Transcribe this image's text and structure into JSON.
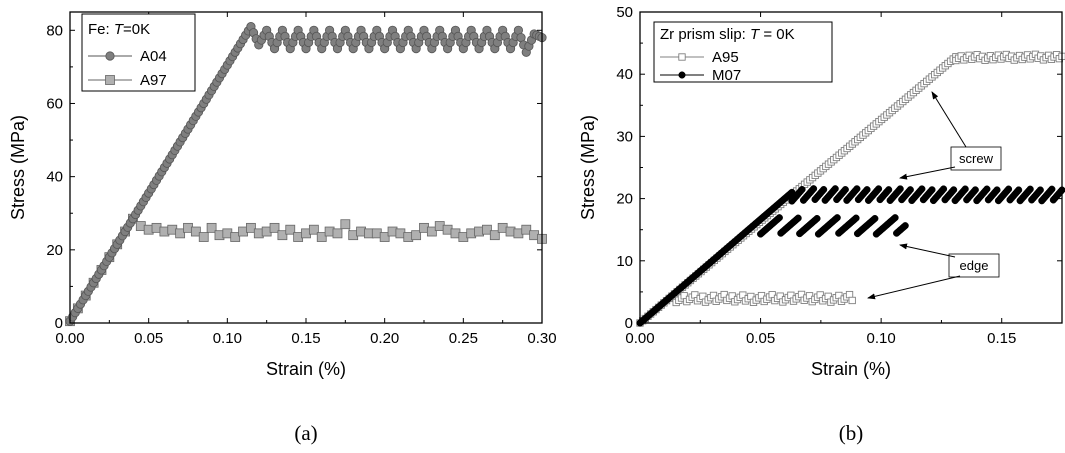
{
  "chart_data": [
    {
      "type": "scatter",
      "panel_label": "(a)",
      "xlabel": "Strain (%)",
      "ylabel": "Stress (MPa)",
      "xlim": [
        0,
        0.3
      ],
      "ylim": [
        0,
        85
      ],
      "xticks": [
        "0.00",
        "0.05",
        "0.10",
        "0.15",
        "0.20",
        "0.25",
        "0.30"
      ],
      "yticks": [
        "0",
        "20",
        "40",
        "60",
        "80"
      ],
      "legend": {
        "title_prefix": "Fe: ",
        "title_italic": "T",
        "title_suffix": "=0K",
        "placement": "top-left"
      },
      "series": [
        {
          "name": "A04",
          "marker": "circle",
          "color": "#7f7f7f",
          "edge": "#555555",
          "x": [
            0.0,
            0.005,
            0.01,
            0.015,
            0.02,
            0.025,
            0.03,
            0.035,
            0.04,
            0.045,
            0.05,
            0.055,
            0.06,
            0.065,
            0.07,
            0.075,
            0.08,
            0.085,
            0.09,
            0.095,
            0.1,
            0.105,
            0.11,
            0.115,
            0.12,
            0.125,
            0.13,
            0.135,
            0.14,
            0.145,
            0.15,
            0.155,
            0.16,
            0.165,
            0.17,
            0.175,
            0.18,
            0.185,
            0.19,
            0.195,
            0.2,
            0.205,
            0.21,
            0.215,
            0.22,
            0.225,
            0.23,
            0.235,
            0.24,
            0.245,
            0.25,
            0.255,
            0.26,
            0.265,
            0.27,
            0.275,
            0.28,
            0.285,
            0.29,
            0.295,
            0.3
          ],
          "y": [
            0.5,
            4,
            7.5,
            11,
            14.5,
            18,
            21.5,
            25,
            28.5,
            32,
            35.5,
            39,
            42.5,
            46,
            49.5,
            53,
            56.5,
            60,
            63.5,
            67,
            70.5,
            74,
            77.5,
            81,
            76,
            80,
            75,
            80,
            75,
            80,
            75,
            80,
            75,
            80,
            75,
            80,
            75,
            80,
            75,
            80,
            75,
            80,
            75,
            80,
            75,
            80,
            75,
            80,
            75,
            80,
            75,
            80,
            75,
            80,
            75,
            80,
            75,
            80,
            74,
            79,
            78
          ]
        },
        {
          "name": "A97",
          "marker": "square",
          "color": "#b0b0b0",
          "edge": "#666666",
          "x": [
            0.0,
            0.005,
            0.01,
            0.015,
            0.02,
            0.025,
            0.03,
            0.035,
            0.04,
            0.045,
            0.05,
            0.055,
            0.06,
            0.065,
            0.07,
            0.075,
            0.08,
            0.085,
            0.09,
            0.095,
            0.1,
            0.105,
            0.11,
            0.115,
            0.12,
            0.125,
            0.13,
            0.135,
            0.14,
            0.145,
            0.15,
            0.155,
            0.16,
            0.165,
            0.17,
            0.175,
            0.18,
            0.185,
            0.19,
            0.195,
            0.2,
            0.205,
            0.21,
            0.215,
            0.22,
            0.225,
            0.23,
            0.235,
            0.24,
            0.245,
            0.25,
            0.255,
            0.26,
            0.265,
            0.27,
            0.275,
            0.28,
            0.285,
            0.29,
            0.295,
            0.3
          ],
          "y": [
            0.5,
            4,
            7.5,
            11,
            14.5,
            18,
            21.5,
            25,
            28.5,
            26.5,
            25.5,
            26,
            25,
            25.5,
            24.5,
            26,
            25,
            23.5,
            26,
            24,
            24.5,
            23.5,
            25,
            26,
            24.5,
            25,
            26,
            24,
            25.5,
            23.5,
            24.5,
            25.5,
            23.5,
            25,
            24.5,
            27,
            24,
            25,
            24.5,
            24.5,
            23.5,
            25,
            24.5,
            23.5,
            24,
            26,
            25,
            26.5,
            25.5,
            24.5,
            23.5,
            24.5,
            25,
            25.5,
            24,
            26,
            25,
            24.5,
            25.5,
            24,
            23
          ]
        }
      ]
    },
    {
      "type": "scatter",
      "panel_label": "(b)",
      "xlabel": "Strain (%)",
      "ylabel": "Stress (MPa)",
      "xlim": [
        0,
        0.175
      ],
      "ylim": [
        0,
        50
      ],
      "xticks": [
        "0.00",
        "0.05",
        "0.10",
        "0.15"
      ],
      "yticks": [
        "0",
        "10",
        "20",
        "30",
        "40",
        "50"
      ],
      "legend": {
        "title_prefix": "Zr prism slip: ",
        "title_italic": "T",
        "title_suffix": " = 0K",
        "placement": "top-left"
      },
      "annotations": [
        {
          "text": "screw"
        },
        {
          "text": "edge"
        }
      ],
      "series": [
        {
          "name": "A95",
          "marker": "open-square",
          "color": "#ffffff",
          "edge": "#808080",
          "curves": [
            {
              "segment": "screw-elastic",
              "x_start": 0.0,
              "x_end": 0.131,
              "y_start": 0.0,
              "y_end": 42.8
            },
            {
              "segment": "screw-plateau",
              "x_start": 0.131,
              "x_end": 0.175,
              "y_low": 42.2,
              "y_high": 43.2,
              "period": 0.003
            },
            {
              "segment": "edge-sawtooth",
              "x_start": 0.015,
              "x_end": 0.088,
              "y_low": 3.3,
              "y_high": 4.6,
              "period": 0.004
            }
          ]
        },
        {
          "name": "M07",
          "marker": "filled-circle",
          "color": "#000000",
          "edge": "#000000",
          "curves": [
            {
              "segment": "screw-elastic",
              "x_start": 0.0,
              "x_end": 0.063,
              "y_start": 0.0,
              "y_end": 21.0
            },
            {
              "segment": "screw-sawtooth",
              "x_start": 0.063,
              "x_end": 0.175,
              "y_low": 19.6,
              "y_high": 21.6,
              "period": 0.0045
            },
            {
              "segment": "edge-sawtooth",
              "x_start": 0.05,
              "x_end": 0.11,
              "y_low": 14.3,
              "y_high": 17.0,
              "period": 0.008
            }
          ]
        }
      ]
    }
  ]
}
